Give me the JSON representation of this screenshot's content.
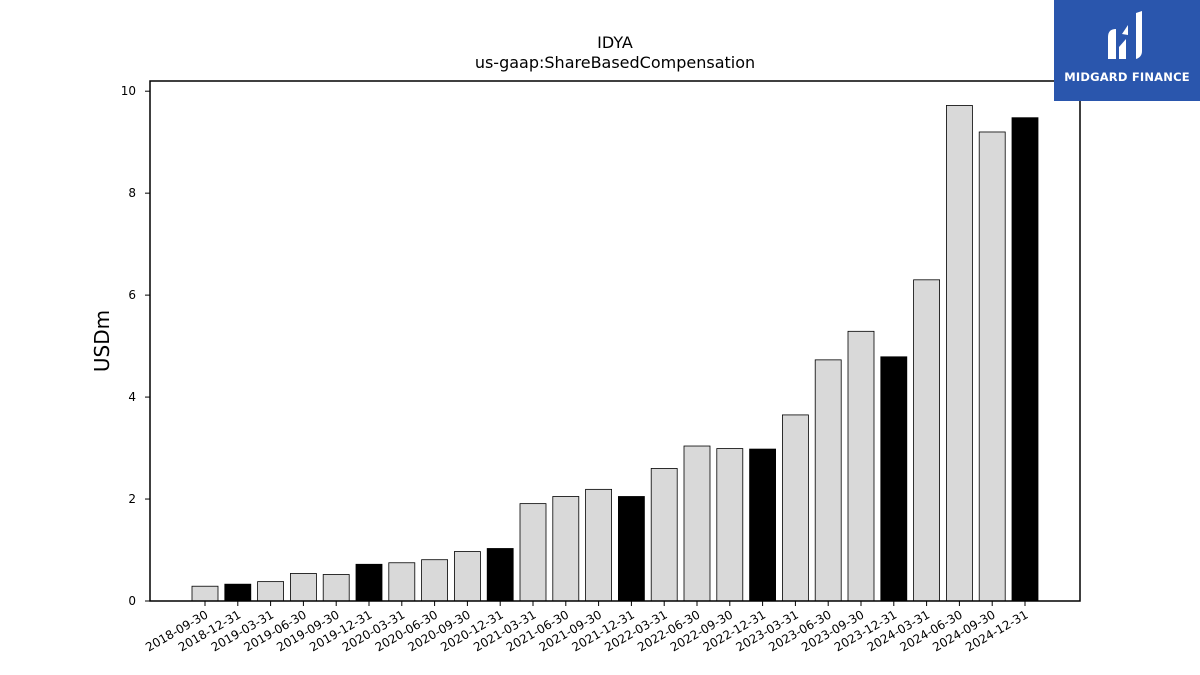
{
  "chart_data": {
    "type": "bar",
    "title": "IDYA",
    "subtitle": "us-gaap:ShareBasedCompensation",
    "xlabel": "",
    "ylabel": "USDm",
    "ylim": [
      0,
      10.2
    ],
    "yticks": [
      0,
      2,
      4,
      6,
      8,
      10
    ],
    "grid": false,
    "categories": [
      "2018-09-30",
      "2018-12-31",
      "2019-03-31",
      "2019-06-30",
      "2019-09-30",
      "2019-12-31",
      "2020-03-31",
      "2020-06-30",
      "2020-09-30",
      "2020-12-31",
      "2021-03-31",
      "2021-06-30",
      "2021-09-30",
      "2021-12-31",
      "2022-03-31",
      "2022-06-30",
      "2022-09-30",
      "2022-12-31",
      "2023-03-31",
      "2023-06-30",
      "2023-09-30",
      "2023-12-31",
      "2024-03-31",
      "2024-06-30",
      "2024-09-30",
      "2024-12-31"
    ],
    "values": [
      0.29,
      0.33,
      0.38,
      0.54,
      0.52,
      0.72,
      0.75,
      0.81,
      0.97,
      1.03,
      1.91,
      2.05,
      2.19,
      2.05,
      2.6,
      3.04,
      2.99,
      2.98,
      3.65,
      4.73,
      5.29,
      4.79,
      6.3,
      9.72,
      9.2,
      9.48
    ],
    "fill_colors": [
      "#d9d9d9",
      "#000000",
      "#d9d9d9",
      "#d9d9d9",
      "#d9d9d9",
      "#000000",
      "#d9d9d9",
      "#d9d9d9",
      "#d9d9d9",
      "#000000",
      "#d9d9d9",
      "#d9d9d9",
      "#d9d9d9",
      "#000000",
      "#d9d9d9",
      "#d9d9d9",
      "#d9d9d9",
      "#000000",
      "#d9d9d9",
      "#d9d9d9",
      "#d9d9d9",
      "#000000",
      "#d9d9d9",
      "#d9d9d9",
      "#d9d9d9",
      "#000000"
    ]
  },
  "logo": {
    "text": "MIDGARD FINANCE",
    "background": "#2a56ad"
  }
}
